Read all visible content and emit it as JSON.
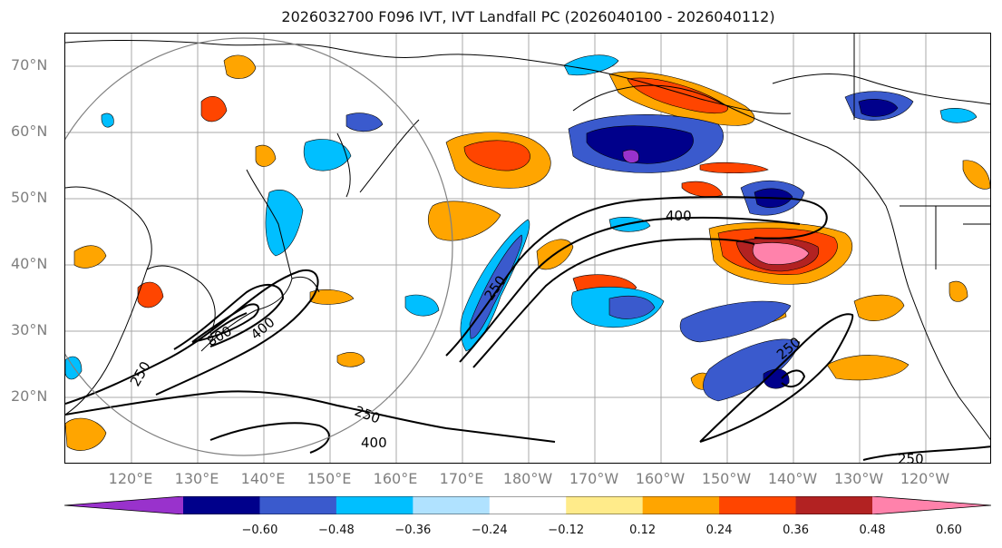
{
  "title": "2026032700 F096 IVT, IVT Landfall PC (2026040100 - 2026040112)",
  "lat_labels": [
    "70°N",
    "60°N",
    "50°N",
    "40°N",
    "30°N",
    "20°N"
  ],
  "lon_labels": [
    "120°E",
    "130°E",
    "140°E",
    "150°E",
    "160°E",
    "170°E",
    "180°W",
    "170°W",
    "160°W",
    "150°W",
    "140°W",
    "130°W",
    "120°W"
  ],
  "contour_labels": [
    "400",
    "250",
    "800",
    "400",
    "250",
    "400",
    "250",
    "250",
    "250",
    "250"
  ],
  "colorbar": {
    "colors": [
      "#9932cc",
      "#00008b",
      "#3a5acd",
      "#00bfff",
      "#b0e2ff",
      "#ffffff",
      "#ffeb8a",
      "#ffa500",
      "#ff4500",
      "#b22222",
      "#ff82ab"
    ],
    "ticks": [
      "−0.60",
      "−0.48",
      "−0.36",
      "−0.24",
      "−0.12",
      "0.12",
      "0.24",
      "0.36",
      "0.48",
      "0.60"
    ],
    "extend": "both"
  },
  "colors": {
    "coast": "#000000",
    "grid": "#a0a0a0",
    "contour": "#000000",
    "circle": "#808080"
  }
}
